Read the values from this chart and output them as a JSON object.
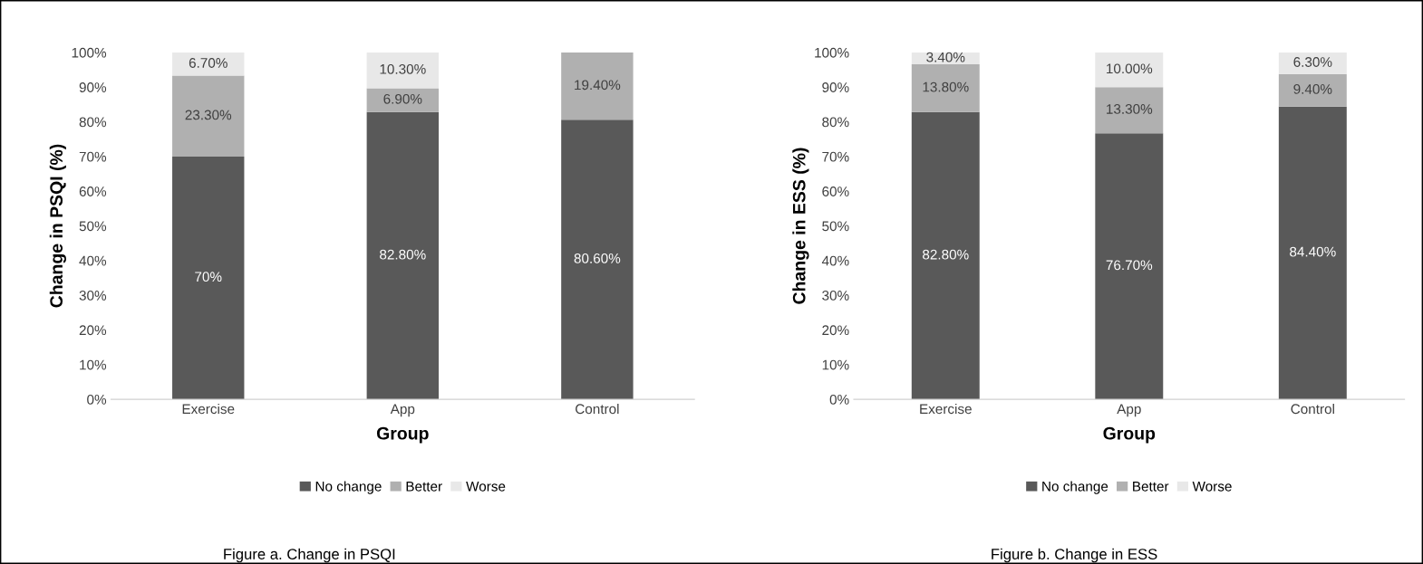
{
  "chart_data": [
    {
      "type": "bar",
      "stacked": true,
      "title": "Figure a. Change in PSQI",
      "xlabel": "Group",
      "ylabel": "Change in PSQI (%)",
      "categories": [
        "Exercise",
        "App",
        "Control"
      ],
      "series": [
        {
          "name": "No change",
          "color": "#595959",
          "values": [
            70,
            82.8,
            80.6
          ],
          "value_labels": [
            "70%",
            "82.80%",
            "80.60%"
          ]
        },
        {
          "name": "Better",
          "color": "#b0b0b0",
          "values": [
            23.3,
            6.9,
            19.4
          ],
          "value_labels": [
            "23.30%",
            "6.90%",
            "19.40%"
          ]
        },
        {
          "name": "Worse",
          "color": "#e8e8e8",
          "values": [
            6.7,
            10.3,
            0
          ],
          "value_labels": [
            "6.70%",
            "10.30%",
            null
          ]
        }
      ],
      "ylim": [
        0,
        100
      ],
      "yticks": [
        {
          "value": 0,
          "label": "0%"
        },
        {
          "value": 10,
          "label": "10%"
        },
        {
          "value": 20,
          "label": "20%"
        },
        {
          "value": 30,
          "label": "30%"
        },
        {
          "value": 40,
          "label": "40%"
        },
        {
          "value": 50,
          "label": "50%"
        },
        {
          "value": 60,
          "label": "60%"
        },
        {
          "value": 70,
          "label": "70%"
        },
        {
          "value": 80,
          "label": "80%"
        },
        {
          "value": 90,
          "label": "90%"
        },
        {
          "value": 100,
          "label": "100%"
        }
      ],
      "legend": "bottom",
      "grid": false
    },
    {
      "type": "bar",
      "stacked": true,
      "title": "Figure b. Change in ESS",
      "xlabel": "Group",
      "ylabel": "Change in ESS (%)",
      "categories": [
        "Exercise",
        "App",
        "Control"
      ],
      "series": [
        {
          "name": "No change",
          "color": "#595959",
          "values": [
            82.8,
            76.7,
            84.4
          ],
          "value_labels": [
            "82.80%",
            "76.70%",
            "84.40%"
          ]
        },
        {
          "name": "Better",
          "color": "#b0b0b0",
          "values": [
            13.8,
            13.3,
            9.4
          ],
          "value_labels": [
            "13.80%",
            "13.30%",
            "9.40%"
          ]
        },
        {
          "name": "Worse",
          "color": "#e8e8e8",
          "values": [
            3.4,
            10.0,
            6.3
          ],
          "value_labels": [
            "3.40%",
            "10.00%",
            "6.30%"
          ]
        }
      ],
      "ylim": [
        0,
        100
      ],
      "yticks": [
        {
          "value": 0,
          "label": "0%"
        },
        {
          "value": 10,
          "label": "10%"
        },
        {
          "value": 20,
          "label": "20%"
        },
        {
          "value": 30,
          "label": "30%"
        },
        {
          "value": 40,
          "label": "40%"
        },
        {
          "value": 50,
          "label": "50%"
        },
        {
          "value": 60,
          "label": "60%"
        },
        {
          "value": 70,
          "label": "70%"
        },
        {
          "value": 80,
          "label": "80%"
        },
        {
          "value": 90,
          "label": "90%"
        },
        {
          "value": 100,
          "label": "100%"
        }
      ],
      "legend": "bottom",
      "grid": false
    }
  ]
}
